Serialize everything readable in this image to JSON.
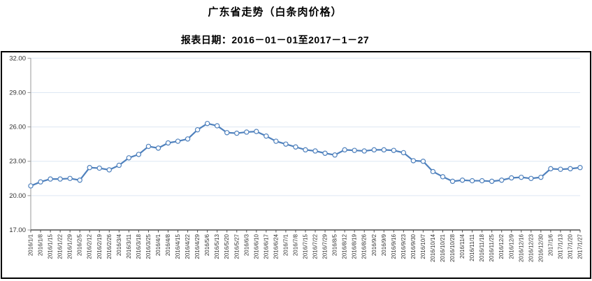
{
  "header": {
    "title": "广东省走势（白条肉价格）",
    "subtitle": "报表日期：2016－01－01至2017－1－27"
  },
  "chart_data": {
    "type": "line",
    "title": "广东省走势（白条肉价格）",
    "subtitle": "报表日期：2016－01－01至2017－1－27",
    "xlabel": "",
    "ylabel": "",
    "ylim": [
      17,
      32
    ],
    "yticks": [
      17,
      20,
      23,
      26,
      29,
      32
    ],
    "ytick_labels": [
      "17.00",
      "20.00",
      "23.00",
      "26.00",
      "29.00",
      "32.00"
    ],
    "grid": true,
    "legend_position": "none",
    "x_labels_rotation": -90,
    "categories": [
      "2016/1/1",
      "2016/1/8",
      "2016/1/15",
      "2016/1/22",
      "2016/1/29",
      "2016/2/5",
      "2016/2/12",
      "2016/2/19",
      "2016/2/26",
      "2016/3/4",
      "2016/3/11",
      "2016/3/18",
      "2016/3/25",
      "2016/4/1",
      "2016/4/8",
      "2016/4/15",
      "2016/4/22",
      "2016/4/29",
      "2016/5/6",
      "2016/5/13",
      "2016/5/20",
      "2016/5/27",
      "2016/6/3",
      "2016/6/10",
      "2016/6/17",
      "2016/6/24",
      "2016/7/1",
      "2016/7/8",
      "2016/7/15",
      "2016/7/22",
      "2016/7/29",
      "2016/8/5",
      "2016/8/12",
      "2016/8/19",
      "2016/8/26",
      "2016/9/2",
      "2016/9/9",
      "2016/9/16",
      "2016/9/23",
      "2016/9/30",
      "2016/10/7",
      "2016/10/14",
      "2016/10/21",
      "2016/10/28",
      "2016/11/4",
      "2016/11/11",
      "2016/11/18",
      "2016/11/25",
      "2016/12/2",
      "2016/12/9",
      "2016/12/16",
      "2016/12/23",
      "2016/12/30",
      "2017/1/6",
      "2017/1/13",
      "2017/1/20",
      "2017/1/27"
    ],
    "series": [
      {
        "name": "白条肉价格",
        "values": [
          20.85,
          21.2,
          21.45,
          21.45,
          21.5,
          21.35,
          22.45,
          22.4,
          22.25,
          22.65,
          23.3,
          23.6,
          24.3,
          24.15,
          24.6,
          24.75,
          24.95,
          25.75,
          26.3,
          26.1,
          25.5,
          25.45,
          25.55,
          25.6,
          25.2,
          24.75,
          24.5,
          24.25,
          24.0,
          23.9,
          23.7,
          23.55,
          24.0,
          23.95,
          23.9,
          24.0,
          24.0,
          23.95,
          23.75,
          23.05,
          23.0,
          22.1,
          21.65,
          21.25,
          21.35,
          21.3,
          21.3,
          21.25,
          21.35,
          21.55,
          21.6,
          21.5,
          21.6,
          22.35,
          22.3,
          22.35,
          22.45
        ]
      }
    ],
    "colors": {
      "line": "#4f81bd",
      "marker_fill": "#ffffff",
      "gridline": "#dde7f3",
      "y_axis": "#9a9a9a",
      "x_axis": "#4d4d4d",
      "tick_label": "#333333",
      "frame_border": "#000000"
    }
  }
}
